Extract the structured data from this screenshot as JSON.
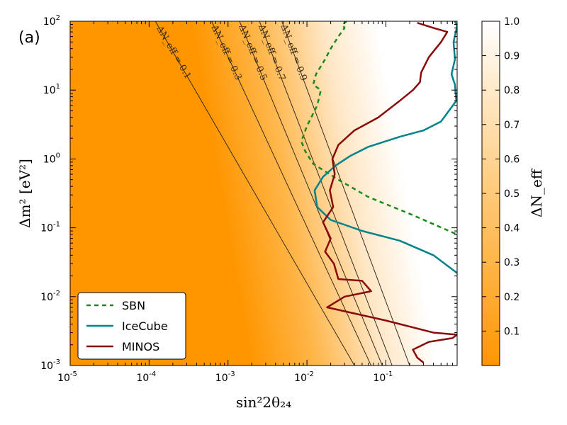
{
  "chart_data": {
    "type": "heatmap",
    "panel_label": "(a)",
    "title": "",
    "xlabel": "sin²2θ₂₄",
    "ylabel": "Δm² [eV²]",
    "xscale": "log",
    "yscale": "log",
    "xlim": [
      1e-05,
      0.8
    ],
    "ylim": [
      0.001,
      100
    ],
    "x_ticks": [
      {
        "value": 1e-05,
        "base": "10",
        "exp": "-5"
      },
      {
        "value": 0.0001,
        "base": "10",
        "exp": "-4"
      },
      {
        "value": 0.001,
        "base": "10",
        "exp": "-3"
      },
      {
        "value": 0.01,
        "base": "10",
        "exp": "-2"
      },
      {
        "value": 0.1,
        "base": "10",
        "exp": "-1"
      }
    ],
    "y_ticks": [
      {
        "value": 0.001,
        "base": "10",
        "exp": "-3"
      },
      {
        "value": 0.01,
        "base": "10",
        "exp": "-2"
      },
      {
        "value": 0.1,
        "base": "10",
        "exp": "-1"
      },
      {
        "value": 1,
        "base": "10",
        "exp": "0"
      },
      {
        "value": 10,
        "base": "10",
        "exp": "1"
      },
      {
        "value": 100,
        "base": "10",
        "exp": "2"
      }
    ],
    "heatmap": {
      "quantity": "ΔN_eff",
      "colormap": [
        "#ff9600",
        "#ffffff"
      ],
      "contours": [
        {
          "label": "ΔN_eff = 0.1",
          "value": 0.1,
          "points": [
            [
              0.00012,
              100
            ],
            [
              0.04,
              0.001
            ]
          ]
        },
        {
          "label": "ΔN_eff = 0.3",
          "value": 0.3,
          "points": [
            [
              0.00062,
              100
            ],
            [
              0.065,
              0.001
            ]
          ]
        },
        {
          "label": "ΔN_eff = 0.5",
          "value": 0.5,
          "points": [
            [
              0.0014,
              100
            ],
            [
              0.09,
              0.001
            ]
          ]
        },
        {
          "label": "ΔN_eff = 0.7",
          "value": 0.7,
          "points": [
            [
              0.0025,
              100
            ],
            [
              0.12,
              0.001
            ]
          ]
        },
        {
          "label": "ΔN_eff = 0.9",
          "value": 0.9,
          "points": [
            [
              0.0048,
              100
            ],
            [
              0.2,
              0.001
            ]
          ]
        }
      ]
    },
    "colorbar": {
      "label": "ΔN_eff",
      "range": [
        0,
        1
      ],
      "ticks": [
        "0.1",
        "0.2",
        "0.3",
        "0.4",
        "0.5",
        "0.6",
        "0.7",
        "0.8",
        "0.9",
        "1.0"
      ]
    },
    "legend_position": "bottom-left",
    "series": [
      {
        "name": "SBN",
        "color": "#1a8a1a",
        "style": "dashed",
        "points": [
          [
            0.032,
            100
          ],
          [
            0.028,
            90
          ],
          [
            0.03,
            80
          ],
          [
            0.025,
            60
          ],
          [
            0.02,
            40
          ],
          [
            0.017,
            28
          ],
          [
            0.013,
            17
          ],
          [
            0.012,
            12
          ],
          [
            0.015,
            10
          ],
          [
            0.0135,
            6
          ],
          [
            0.01,
            3
          ],
          [
            0.0085,
            1.8
          ],
          [
            0.0095,
            1.3
          ],
          [
            0.012,
            0.85
          ],
          [
            0.025,
            0.5
          ],
          [
            0.06,
            0.28
          ],
          [
            0.2,
            0.16
          ],
          [
            0.8,
            0.08
          ]
        ]
      },
      {
        "name": "IceCube",
        "color": "#00838a",
        "style": "solid",
        "points": [
          [
            0.75,
            100
          ],
          [
            0.8,
            85
          ],
          [
            0.72,
            50
          ],
          [
            0.75,
            28
          ],
          [
            0.68,
            17
          ],
          [
            0.75,
            12
          ],
          [
            0.78,
            7
          ],
          [
            0.5,
            3.5
          ],
          [
            0.3,
            2.6
          ],
          [
            0.15,
            2.1
          ],
          [
            0.06,
            1.5
          ],
          [
            0.035,
            1.1
          ],
          [
            0.023,
            0.8
          ],
          [
            0.016,
            0.55
          ],
          [
            0.0125,
            0.35
          ],
          [
            0.0135,
            0.2
          ],
          [
            0.02,
            0.13
          ],
          [
            0.05,
            0.09
          ],
          [
            0.15,
            0.065
          ],
          [
            0.4,
            0.04
          ],
          [
            0.8,
            0.022
          ]
        ]
      },
      {
        "name": "MINOS",
        "color": "#8a0a0a",
        "style": "solid",
        "points": [
          [
            0.25,
            95
          ],
          [
            0.4,
            80
          ],
          [
            0.6,
            70
          ],
          [
            0.5,
            50
          ],
          [
            0.35,
            30
          ],
          [
            0.28,
            18
          ],
          [
            0.27,
            13
          ],
          [
            0.22,
            10
          ],
          [
            0.15,
            7
          ],
          [
            0.08,
            4
          ],
          [
            0.04,
            2.6
          ],
          [
            0.025,
            1.6
          ],
          [
            0.021,
            1
          ],
          [
            0.0225,
            0.6
          ],
          [
            0.0195,
            0.35
          ],
          [
            0.0215,
            0.2
          ],
          [
            0.016,
            0.12
          ],
          [
            0.02,
            0.07
          ],
          [
            0.017,
            0.045
          ],
          [
            0.022,
            0.03
          ],
          [
            0.025,
            0.018
          ],
          [
            0.05,
            0.017
          ],
          [
            0.065,
            0.012
          ],
          [
            0.03,
            0.01
          ],
          [
            0.018,
            0.007
          ],
          [
            0.1,
            0.0045
          ],
          [
            0.4,
            0.003
          ],
          [
            0.8,
            0.0028
          ],
          [
            0.7,
            0.0025
          ],
          [
            0.35,
            0.0022
          ],
          [
            0.22,
            0.0017
          ],
          [
            0.25,
            0.0013
          ],
          [
            0.3,
            0.0011
          ]
        ]
      }
    ]
  }
}
